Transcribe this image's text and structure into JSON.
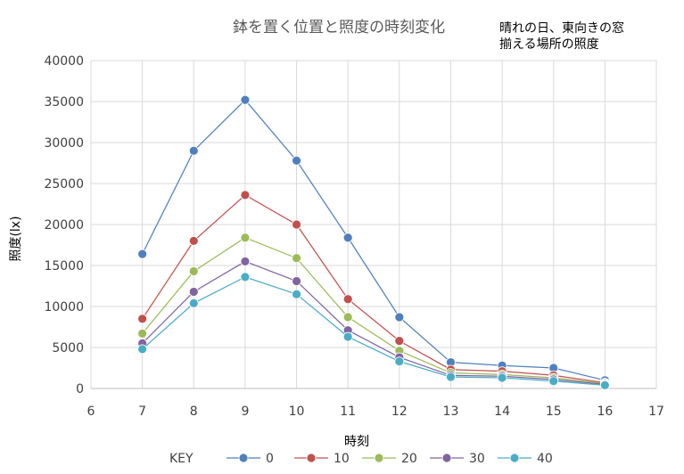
{
  "chart_data": {
    "type": "scatter",
    "title": "鉢を置く位置と照度の時刻変化",
    "note": [
      "晴れの日、東向きの窓",
      "揃える場所の照度"
    ],
    "xlabel": "時刻",
    "ylabel": "照度(lx)",
    "xlim": [
      6,
      17
    ],
    "ylim": [
      0,
      40000
    ],
    "x_ticks": [
      "6",
      "7",
      "8",
      "9",
      "10",
      "11",
      "12",
      "13",
      "14",
      "15",
      "16",
      "17"
    ],
    "y_ticks": [
      "0",
      "5000",
      "10000",
      "15000",
      "20000",
      "25000",
      "30000",
      "35000",
      "40000"
    ],
    "grid": "horizontal and vertical",
    "legend": {
      "title": "KEY",
      "position": "bottom"
    },
    "x": [
      7,
      8,
      9,
      10,
      11,
      12,
      13,
      14,
      15,
      16
    ],
    "series": [
      {
        "name": "0",
        "color": "#4f7fbf",
        "values": [
          16400,
          29000,
          35200,
          27800,
          18400,
          8700,
          3200,
          2800,
          2500,
          1000
        ]
      },
      {
        "name": "10",
        "color": "#c0504d",
        "values": [
          8500,
          18000,
          23600,
          20000,
          10900,
          5800,
          2300,
          2100,
          1600,
          700
        ]
      },
      {
        "name": "20",
        "color": "#9bbb59",
        "values": [
          6700,
          14300,
          18400,
          15900,
          8700,
          4600,
          1900,
          1700,
          1300,
          600
        ]
      },
      {
        "name": "30",
        "color": "#8064a2",
        "values": [
          5500,
          11800,
          15500,
          13100,
          7100,
          3800,
          1600,
          1500,
          1100,
          500
        ]
      },
      {
        "name": "40",
        "color": "#4bacc6",
        "values": [
          4800,
          10400,
          13600,
          11500,
          6300,
          3300,
          1400,
          1300,
          900,
          400
        ]
      }
    ]
  }
}
